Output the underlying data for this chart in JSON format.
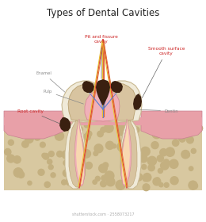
{
  "title": "Types of Dental Cavities",
  "title_fontsize": 8.5,
  "bg_color": "#ffffff",
  "colors": {
    "enamel": "#f0ead8",
    "enamel_stroke": "#c8b890",
    "dentin": "#d8c4a0",
    "dentin_stroke": "#b8a070",
    "pulp_outer": "#f0b0b8",
    "pulp_inner": "#e89090",
    "pulp_stroke": "#d08090",
    "canal_fill": "#f8d8b0",
    "cavity_dark": "#3a2010",
    "gum": "#e8a0a8",
    "gum_stroke": "#c88090",
    "bone": "#d8c8a0",
    "bone_spot": "#c4b080",
    "nerve_red": "#e04040",
    "nerve_yellow": "#e8c030",
    "nerve_blue": "#6080d0",
    "nerve_orange": "#e07030",
    "ann_red": "#cc2222",
    "ann_gray": "#666666",
    "lbl_gray": "#888888"
  },
  "labels": {
    "pit_fissure": "Pit and fissure\ncavity",
    "smooth_surface": "Smooth surface\ncavity",
    "root_cavity": "Root cavity",
    "enamel": "Enamel",
    "pulp": "Pulp",
    "dentin": "Dentin"
  },
  "watermark": "shutterstock.com · 2558073217"
}
